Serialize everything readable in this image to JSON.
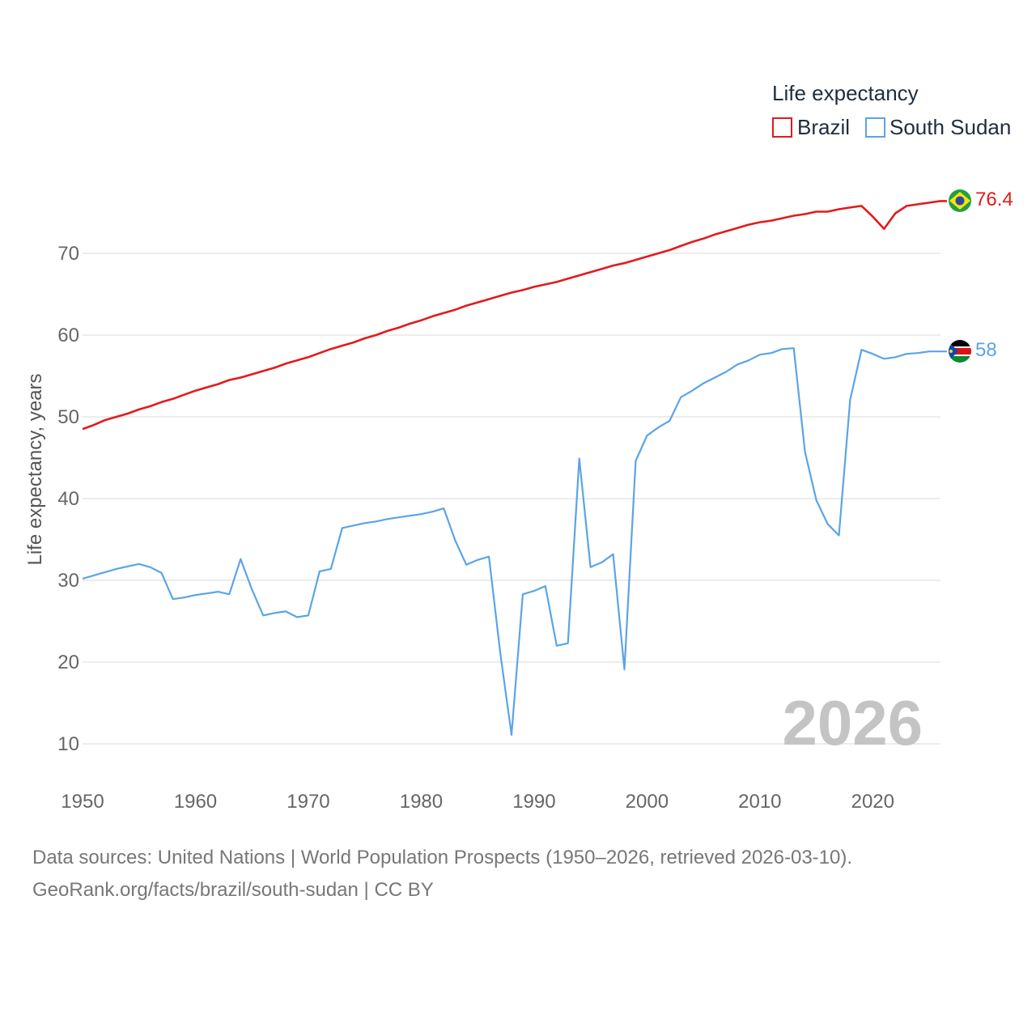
{
  "chart_data": {
    "type": "line",
    "legend_title": "Life expectancy",
    "ylabel": "Life expectancy, years",
    "xlabel": "",
    "x_range": [
      1950,
      2026
    ],
    "ylim": [
      5,
      82
    ],
    "y_ticks": [
      10,
      20,
      30,
      40,
      50,
      60,
      70
    ],
    "x_ticks": [
      1950,
      1960,
      1970,
      1980,
      1990,
      2000,
      2010,
      2020
    ],
    "grid": true,
    "legend_position": "top-right",
    "current_year": "2026",
    "x": [
      1950,
      1951,
      1952,
      1953,
      1954,
      1955,
      1956,
      1957,
      1958,
      1959,
      1960,
      1961,
      1962,
      1963,
      1964,
      1965,
      1966,
      1967,
      1968,
      1969,
      1970,
      1971,
      1972,
      1973,
      1974,
      1975,
      1976,
      1977,
      1978,
      1979,
      1980,
      1981,
      1982,
      1983,
      1984,
      1985,
      1986,
      1987,
      1988,
      1989,
      1990,
      1991,
      1992,
      1993,
      1994,
      1995,
      1996,
      1997,
      1998,
      1999,
      2000,
      2001,
      2002,
      2003,
      2004,
      2005,
      2006,
      2007,
      2008,
      2009,
      2010,
      2011,
      2012,
      2013,
      2014,
      2015,
      2016,
      2017,
      2018,
      2019,
      2020,
      2021,
      2022,
      2023,
      2024,
      2025,
      2026
    ],
    "series": [
      {
        "name": "Brazil",
        "color": "#e31a1c",
        "end_label": "76.4",
        "values": [
          48.5,
          49.0,
          49.6,
          50.0,
          50.4,
          50.9,
          51.3,
          51.8,
          52.2,
          52.7,
          53.2,
          53.6,
          54.0,
          54.5,
          54.8,
          55.2,
          55.6,
          56.0,
          56.5,
          56.9,
          57.3,
          57.8,
          58.3,
          58.7,
          59.1,
          59.6,
          60.0,
          60.5,
          60.9,
          61.4,
          61.8,
          62.3,
          62.7,
          63.1,
          63.6,
          64.0,
          64.4,
          64.8,
          65.2,
          65.5,
          65.9,
          66.2,
          66.5,
          66.9,
          67.3,
          67.7,
          68.1,
          68.5,
          68.8,
          69.2,
          69.6,
          70.0,
          70.4,
          70.9,
          71.4,
          71.8,
          72.3,
          72.7,
          73.1,
          73.5,
          73.8,
          74.0,
          74.3,
          74.6,
          74.8,
          75.1,
          75.1,
          75.4,
          75.6,
          75.8,
          74.5,
          73.0,
          74.9,
          75.8,
          76.0,
          76.2,
          76.4
        ]
      },
      {
        "name": "South Sudan",
        "color": "#5ba4e6",
        "end_label": "58",
        "values": [
          30.2,
          30.6,
          31.0,
          31.4,
          31.7,
          32.0,
          31.6,
          30.9,
          27.7,
          27.9,
          28.2,
          28.4,
          28.6,
          28.3,
          32.6,
          28.9,
          25.7,
          26.0,
          26.2,
          25.5,
          25.7,
          31.1,
          31.4,
          36.4,
          36.7,
          37.0,
          37.2,
          37.5,
          37.7,
          37.9,
          38.1,
          38.4,
          38.8,
          34.9,
          31.9,
          32.5,
          32.9,
          21.1,
          11.1,
          28.3,
          28.7,
          29.3,
          22.0,
          22.3,
          44.9,
          31.6,
          32.2,
          33.2,
          19.1,
          44.6,
          47.7,
          48.7,
          49.5,
          52.4,
          53.2,
          54.1,
          54.8,
          55.5,
          56.4,
          56.9,
          57.6,
          57.8,
          58.3,
          58.4,
          45.7,
          39.8,
          36.9,
          35.5,
          52.1,
          58.2,
          57.7,
          57.1,
          57.3,
          57.7,
          57.8,
          58.0,
          58.0
        ]
      }
    ]
  },
  "footer": {
    "source_line": "Data sources: United Nations | World Population Prospects (1950–2026, retrieved 2026-03-10).",
    "url_line": "GeoRank.org/facts/brazil/south-sudan | CC BY"
  }
}
